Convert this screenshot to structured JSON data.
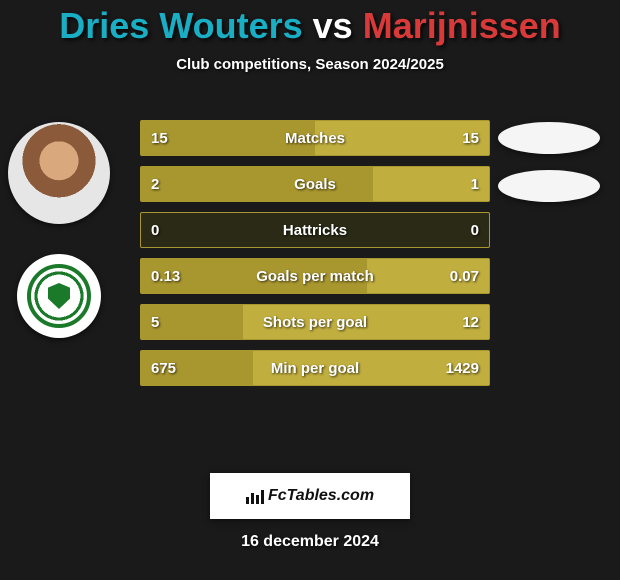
{
  "colors": {
    "bg": "#1a1a1a",
    "accent": "#a8962f",
    "accent_light": "#c0ae3f",
    "player1": "#1aaec4",
    "player2": "#d83a3a",
    "white": "#ffffff"
  },
  "title": {
    "player1": "Dries Wouters",
    "vs": "vs",
    "player2": "Marijnissen"
  },
  "subtitle": "Club competitions, Season 2024/2025",
  "rows": [
    {
      "label": "Matches",
      "left": "15",
      "right": "15",
      "left_pct": 50,
      "right_pct": 50
    },
    {
      "label": "Goals",
      "left": "2",
      "right": "1",
      "left_pct": 66.7,
      "right_pct": 33.3
    },
    {
      "label": "Hattricks",
      "left": "0",
      "right": "0",
      "left_pct": 0,
      "right_pct": 0
    },
    {
      "label": "Goals per match",
      "left": "0.13",
      "right": "0.07",
      "left_pct": 65,
      "right_pct": 35
    },
    {
      "label": "Shots per goal",
      "left": "5",
      "right": "12",
      "left_pct": 29.4,
      "right_pct": 70.6
    },
    {
      "label": "Min per goal",
      "left": "675",
      "right": "1429",
      "left_pct": 32.1,
      "right_pct": 67.9
    }
  ],
  "footer_brand": "FcTables.com",
  "date": "16 december 2024"
}
